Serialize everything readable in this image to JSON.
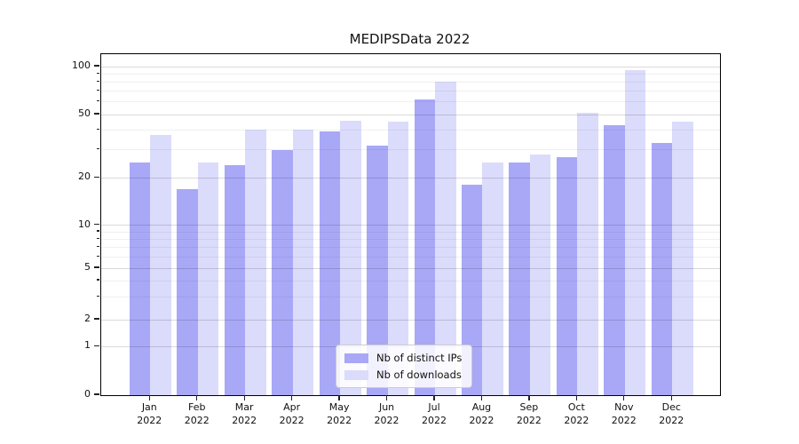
{
  "title": "MEDIPSData 2022",
  "chart_data": {
    "type": "bar",
    "title": "MEDIPSData 2022",
    "xlabel": "",
    "ylabel": "",
    "yscale": "symlog",
    "categories": [
      "Jan",
      "Feb",
      "Mar",
      "Apr",
      "May",
      "Jun",
      "Jul",
      "Aug",
      "Sep",
      "Oct",
      "Nov",
      "Dec"
    ],
    "x_tick_year": "2022",
    "series": [
      {
        "name": "Nb of distinct IPs",
        "color": "#a8a8f7",
        "values": [
          25,
          17,
          24,
          30,
          39,
          32,
          62,
          18,
          25,
          27,
          43,
          33
        ]
      },
      {
        "name": "Nb of downloads",
        "color": "#dbdbfb",
        "values": [
          37,
          25,
          40,
          40,
          46,
          45,
          80,
          25,
          28,
          51,
          95,
          45
        ]
      }
    ],
    "y_ticks": [
      0,
      1,
      2,
      5,
      10,
      20,
      50,
      100
    ],
    "y_minor_ticks": [
      3,
      4,
      6,
      7,
      8,
      9,
      30,
      40,
      60,
      70,
      80,
      90
    ],
    "ylim": [
      0,
      110
    ],
    "grid": "on",
    "legend_position": "lower center"
  }
}
